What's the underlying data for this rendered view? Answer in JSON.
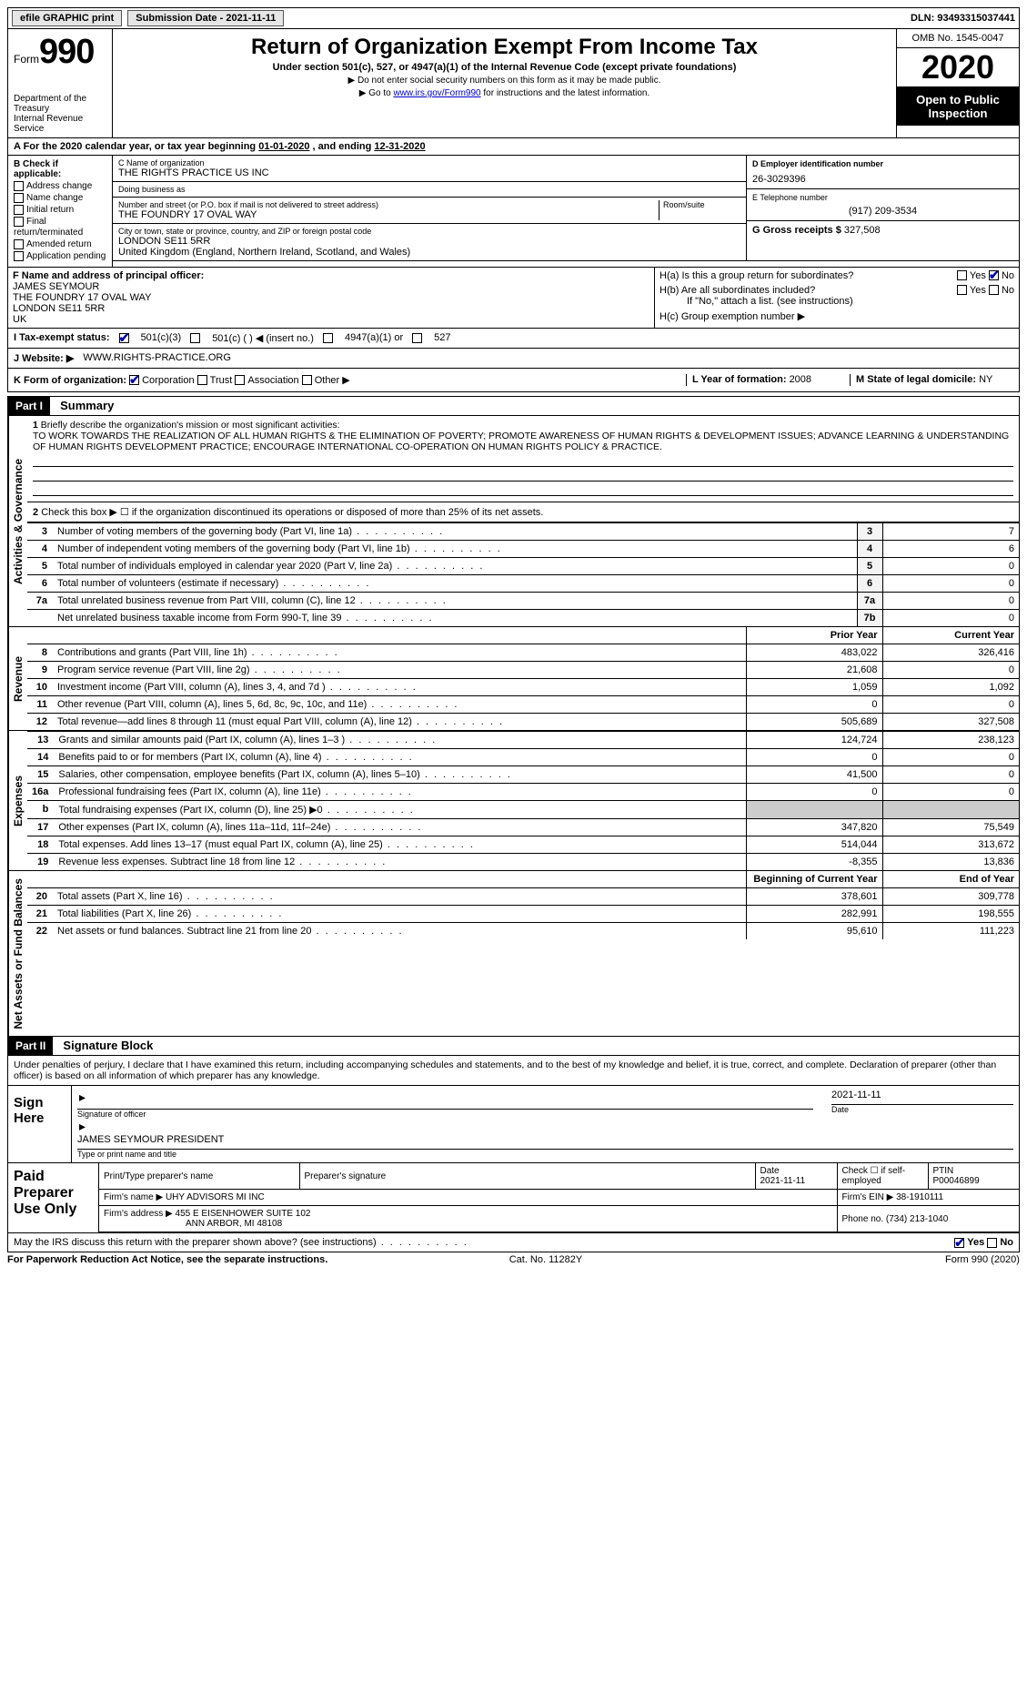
{
  "topbar": {
    "efile": "efile GRAPHIC print",
    "submission_lbl": "Submission Date - ",
    "submission_date": "2021-11-11",
    "dln_lbl": "DLN: ",
    "dln": "93493315037441"
  },
  "header": {
    "form_prefix": "Form",
    "form_no": "990",
    "dept": "Department of the Treasury\nInternal Revenue Service",
    "title": "Return of Organization Exempt From Income Tax",
    "subtitle": "Under section 501(c), 527, or 4947(a)(1) of the Internal Revenue Code (except private foundations)",
    "note1": "▶ Do not enter social security numbers on this form as it may be made public.",
    "note2_pre": "▶ Go to ",
    "note2_link": "www.irs.gov/Form990",
    "note2_post": " for instructions and the latest information.",
    "omb": "OMB No. 1545-0047",
    "year": "2020",
    "inspect": "Open to Public Inspection"
  },
  "sectA": {
    "text_pre": "A  For the 2020 calendar year, or tax year beginning ",
    "begin": "01-01-2020",
    "mid": "  , and ending ",
    "end": "12-31-2020"
  },
  "colB": {
    "hdr": "B Check if applicable:",
    "items": [
      "Address change",
      "Name change",
      "Initial return",
      "Final return/terminated",
      "Amended return",
      "Application pending"
    ]
  },
  "colC": {
    "name_lbl": "C Name of organization",
    "name": "THE RIGHTS PRACTICE US INC",
    "dba_lbl": "Doing business as",
    "dba": "",
    "street_lbl": "Number and street (or P.O. box if mail is not delivered to street address)",
    "street": "THE FOUNDRY 17 OVAL WAY",
    "room_lbl": "Room/suite",
    "city_lbl": "City or town, state or province, country, and ZIP or foreign postal code",
    "city": "LONDON   SE11 5RR",
    "country": "United Kingdom (England, Northern Ireland, Scotland, and Wales)"
  },
  "colD": {
    "lbl": "D Employer identification number",
    "val": "26-3029396"
  },
  "colE": {
    "lbl": "E Telephone number",
    "val": "(917) 209-3534"
  },
  "colG": {
    "lbl": "G Gross receipts $ ",
    "val": "327,508"
  },
  "colF": {
    "lbl": "F  Name and address of principal officer:",
    "name": "JAMES SEYMOUR",
    "addr1": "THE FOUNDRY 17 OVAL WAY",
    "addr2": "LONDON     SE11 5RR",
    "addr3": "UK"
  },
  "colH": {
    "a": "H(a)  Is this a group return for subordinates?",
    "b": "H(b)  Are all subordinates included?",
    "bnote": "If \"No,\" attach a list. (see instructions)",
    "c": "H(c)  Group exemption number ▶",
    "yes": "Yes",
    "no": "No"
  },
  "status": {
    "lbl": "I    Tax-exempt status:",
    "o1": "501(c)(3)",
    "o2": "501(c) (   ) ◀ (insert no.)",
    "o3": "4947(a)(1) or",
    "o4": "527"
  },
  "website": {
    "lbl": "J    Website: ▶",
    "val": "WWW.RIGHTS-PRACTICE.ORG"
  },
  "kline": {
    "lbl": "K Form of organization:",
    "o1": "Corporation",
    "o2": "Trust",
    "o3": "Association",
    "o4": "Other ▶",
    "L": "L Year of formation: ",
    "Lv": "2008",
    "M": "M State of legal domicile: ",
    "Mv": "NY"
  },
  "part1": {
    "title": "Part I",
    "name": "Summary",
    "q1": "Briefly describe the organization's mission or most significant activities:",
    "mission": "TO WORK TOWARDS THE REALIZATION OF ALL HUMAN RIGHTS & THE ELIMINATION OF POVERTY; PROMOTE AWARENESS OF HUMAN RIGHTS & DEVELOPMENT ISSUES; ADVANCE LEARNING & UNDERSTANDING OF HUMAN RIGHTS DEVELOPMENT PRACTICE; ENCOURAGE INTERNATIONAL CO-OPERATION ON HUMAN RIGHTS POLICY & PRACTICE.",
    "q2": "Check this box ▶ ☐  if the organization discontinued its operations or disposed of more than 25% of its net assets.",
    "vtab1": "Activities & Governance",
    "vtab2": "Revenue",
    "vtab3": "Expenses",
    "vtab4": "Net Assets or Fund Balances",
    "rows_gov": [
      {
        "n": "3",
        "d": "Number of voting members of the governing body (Part VI, line 1a)",
        "box": "3",
        "v": "7"
      },
      {
        "n": "4",
        "d": "Number of independent voting members of the governing body (Part VI, line 1b)",
        "box": "4",
        "v": "6"
      },
      {
        "n": "5",
        "d": "Total number of individuals employed in calendar year 2020 (Part V, line 2a)",
        "box": "5",
        "v": "0"
      },
      {
        "n": "6",
        "d": "Total number of volunteers (estimate if necessary)",
        "box": "6",
        "v": "0"
      },
      {
        "n": "7a",
        "d": "Total unrelated business revenue from Part VIII, column (C), line 12",
        "box": "7a",
        "v": "0"
      },
      {
        "n": "",
        "d": "Net unrelated business taxable income from Form 990-T, line 39",
        "box": "7b",
        "v": "0"
      }
    ],
    "hdr_prior": "Prior Year",
    "hdr_curr": "Current Year",
    "rows_rev": [
      {
        "n": "8",
        "d": "Contributions and grants (Part VIII, line 1h)",
        "p": "483,022",
        "c": "326,416"
      },
      {
        "n": "9",
        "d": "Program service revenue (Part VIII, line 2g)",
        "p": "21,608",
        "c": "0"
      },
      {
        "n": "10",
        "d": "Investment income (Part VIII, column (A), lines 3, 4, and 7d )",
        "p": "1,059",
        "c": "1,092"
      },
      {
        "n": "11",
        "d": "Other revenue (Part VIII, column (A), lines 5, 6d, 8c, 9c, 10c, and 11e)",
        "p": "0",
        "c": "0"
      },
      {
        "n": "12",
        "d": "Total revenue—add lines 8 through 11 (must equal Part VIII, column (A), line 12)",
        "p": "505,689",
        "c": "327,508"
      }
    ],
    "rows_exp": [
      {
        "n": "13",
        "d": "Grants and similar amounts paid (Part IX, column (A), lines 1–3 )",
        "p": "124,724",
        "c": "238,123"
      },
      {
        "n": "14",
        "d": "Benefits paid to or for members (Part IX, column (A), line 4)",
        "p": "0",
        "c": "0"
      },
      {
        "n": "15",
        "d": "Salaries, other compensation, employee benefits (Part IX, column (A), lines 5–10)",
        "p": "41,500",
        "c": "0"
      },
      {
        "n": "16a",
        "d": "Professional fundraising fees (Part IX, column (A), line 11e)",
        "p": "0",
        "c": "0"
      },
      {
        "n": "b",
        "d": "Total fundraising expenses (Part IX, column (D), line 25) ▶0",
        "p": "",
        "c": "",
        "gray": true
      },
      {
        "n": "17",
        "d": "Other expenses (Part IX, column (A), lines 11a–11d, 11f–24e)",
        "p": "347,820",
        "c": "75,549"
      },
      {
        "n": "18",
        "d": "Total expenses. Add lines 13–17 (must equal Part IX, column (A), line 25)",
        "p": "514,044",
        "c": "313,672"
      },
      {
        "n": "19",
        "d": "Revenue less expenses. Subtract line 18 from line 12",
        "p": "-8,355",
        "c": "13,836"
      }
    ],
    "hdr_begin": "Beginning of Current Year",
    "hdr_end": "End of Year",
    "rows_net": [
      {
        "n": "20",
        "d": "Total assets (Part X, line 16)",
        "p": "378,601",
        "c": "309,778"
      },
      {
        "n": "21",
        "d": "Total liabilities (Part X, line 26)",
        "p": "282,991",
        "c": "198,555"
      },
      {
        "n": "22",
        "d": "Net assets or fund balances. Subtract line 21 from line 20",
        "p": "95,610",
        "c": "111,223"
      }
    ]
  },
  "part2": {
    "title": "Part II",
    "name": "Signature Block",
    "decl": "Under penalties of perjury, I declare that I have examined this return, including accompanying schedules and statements, and to the best of my knowledge and belief, it is true, correct, and complete. Declaration of preparer (other than officer) is based on all information of which preparer has any knowledge.",
    "sign_lbl": "Sign Here",
    "sig_officer": "Signature of officer",
    "sig_date": "Date",
    "date_v": "2021-11-11",
    "nametitle_lbl": "Type or print name and title",
    "nametitle": "JAMES SEYMOUR  PRESIDENT",
    "paid_lbl": "Paid Preparer Use Only",
    "p_name_lbl": "Print/Type preparer's name",
    "p_sig_lbl": "Preparer's signature",
    "p_date_lbl": "Date",
    "p_date": "2021-11-11",
    "p_self": "Check ☐ if self-employed",
    "p_ptin_lbl": "PTIN",
    "p_ptin": "P00046899",
    "firm_lbl": "Firm's name   ▶",
    "firm": "UHY ADVISORS MI INC",
    "ein_lbl": "Firm's EIN ▶",
    "ein": "38-1910111",
    "addr_lbl": "Firm's address ▶",
    "addr": "455 E EISENHOWER SUITE 102",
    "addr2": "ANN ARBOR, MI  48108",
    "phone_lbl": "Phone no.",
    "phone": "(734) 213-1040",
    "discuss": "May the IRS discuss this return with the preparer shown above? (see instructions)",
    "yes": "Yes",
    "no": "No"
  },
  "foot": {
    "l": "For Paperwork Reduction Act Notice, see the separate instructions.",
    "m": "Cat. No. 11282Y",
    "r": "Form 990 (2020)"
  }
}
